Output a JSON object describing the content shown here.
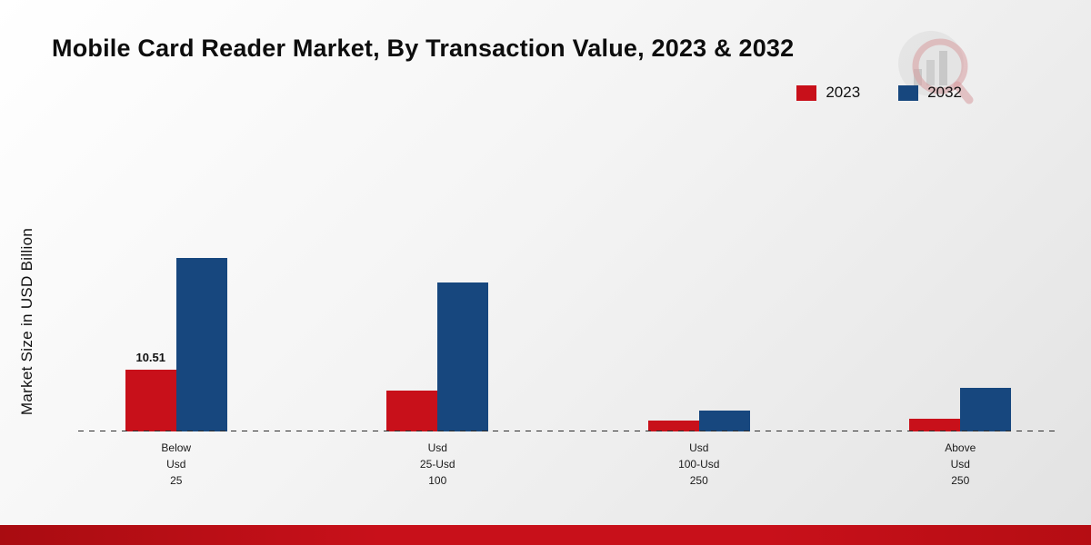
{
  "title": "Mobile Card Reader Market, By Transaction Value, 2023 & 2032",
  "ylabel": "Market Size in USD Billion",
  "colors": {
    "series_2023": "#c8101a",
    "series_2032": "#17477e",
    "footer_band": "#c8101a"
  },
  "legend": [
    {
      "label": "2023",
      "color": "#c8101a"
    },
    {
      "label": "2032",
      "color": "#17477e"
    }
  ],
  "chart_data": {
    "type": "bar",
    "categories": [
      "Below Usd 25",
      "Usd 25-Usd 100",
      "Usd 100-Usd 250",
      "Above Usd 250"
    ],
    "category_label_lines": [
      [
        "Below",
        "Usd",
        "25"
      ],
      [
        "Usd",
        "25-Usd",
        "100"
      ],
      [
        "Usd",
        "100-Usd",
        "250"
      ],
      [
        "Above",
        "Usd",
        "250"
      ]
    ],
    "series": [
      {
        "name": "2023",
        "color": "#c8101a",
        "values": [
          10.51,
          7.0,
          1.85,
          2.15
        ]
      },
      {
        "name": "2032",
        "color": "#17477e",
        "values": [
          29.5,
          25.3,
          3.55,
          7.4
        ]
      }
    ],
    "value_labels": [
      {
        "series": "2023",
        "category": "Below Usd 25",
        "text": "10.51"
      }
    ],
    "xlabel": "",
    "ylabel": "Market Size in USD Billion",
    "ylim": [
      0,
      32
    ],
    "grid": false,
    "baseline_style": "dashed",
    "legend_position": "top-right"
  }
}
